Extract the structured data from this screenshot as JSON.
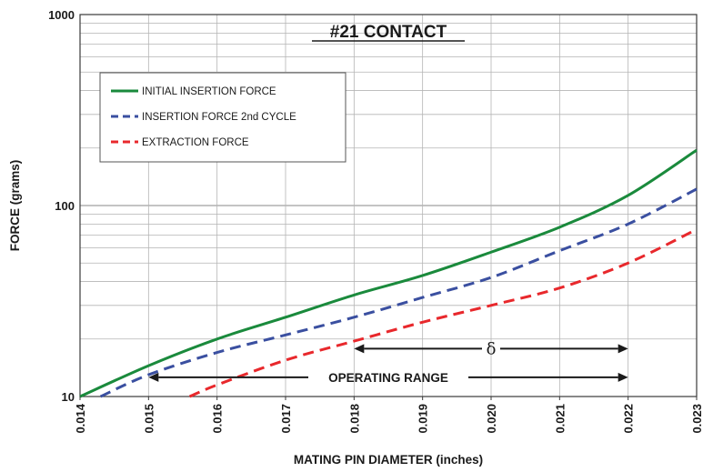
{
  "chart_data": {
    "type": "line",
    "title": "#21 CONTACT",
    "xlabel": "MATING PIN DIAMETER (inches)",
    "ylabel": "FORCE (grams)",
    "xlim": [
      0.014,
      0.023
    ],
    "ylim": [
      10,
      1000
    ],
    "y_scale": "log",
    "grid": true,
    "legend_position": "top-left",
    "x_ticks": [
      "0.014",
      "0.015",
      "0.016",
      "0.017",
      "0.018",
      "0.019",
      "0.020",
      "0.021",
      "0.022",
      "0.023"
    ],
    "y_ticks": [
      "10",
      "100",
      "1000"
    ],
    "series": [
      {
        "name": "INITIAL INSERTION FORCE",
        "color": "#1a8a3c",
        "style": "solid",
        "x": [
          0.014,
          0.015,
          0.016,
          0.017,
          0.018,
          0.019,
          0.02,
          0.021,
          0.022,
          0.023
        ],
        "y": [
          10,
          14.5,
          20,
          26,
          34,
          43,
          57,
          77,
          113,
          195
        ]
      },
      {
        "name": "INSERTION FORCE 2nd CYCLE",
        "color": "#3a4fa0",
        "style": "dashed",
        "x": [
          0.0143,
          0.015,
          0.016,
          0.017,
          0.018,
          0.019,
          0.02,
          0.021,
          0.022,
          0.023
        ],
        "y": [
          10,
          13,
          17,
          21,
          26,
          33,
          42,
          58,
          80,
          122
        ]
      },
      {
        "name": "EXTRACTION FORCE",
        "color": "#e8282c",
        "style": "dashed",
        "x": [
          0.0156,
          0.016,
          0.017,
          0.018,
          0.019,
          0.02,
          0.021,
          0.022,
          0.023
        ],
        "y": [
          10,
          11.5,
          15.5,
          19.5,
          24.5,
          30,
          37,
          50,
          75
        ]
      }
    ],
    "annotations": [
      {
        "text": "δ",
        "x_range": [
          0.018,
          0.022
        ],
        "y": 17.8
      },
      {
        "text": "OPERATING RANGE",
        "x_range": [
          0.015,
          0.022
        ],
        "y": 12.6
      }
    ]
  }
}
